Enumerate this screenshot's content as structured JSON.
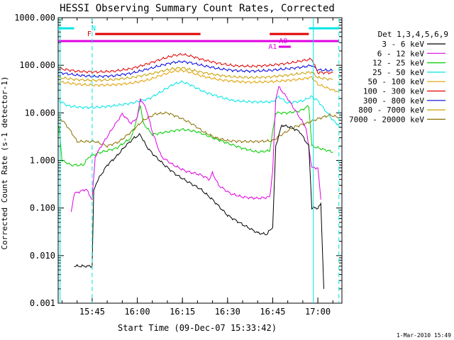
{
  "chart_data": {
    "type": "line",
    "title": "HESSI Observing Summary Count Rates, Corrected",
    "xlabel": "Start Time (09-Dec-07 15:33:42)",
    "ylabel": "Corrected Count Rate (s-1 detector-1)",
    "y_scale": "log",
    "ylim": [
      0.001,
      1000
    ],
    "xlim": [
      "15:33:42",
      "17:08:00"
    ],
    "y_ticks": [
      "0.001",
      "0.010",
      "0.100",
      "1.000",
      "10.000",
      "100.000",
      "1000.000"
    ],
    "x_ticks": [
      "15:45",
      "16:00",
      "16:15",
      "16:30",
      "16:45",
      "17:00"
    ],
    "legend_title": "Det 1,3,4,5,6,9",
    "legend_placement": "right",
    "footer_date": "1-Mar-2010 15:49",
    "flags": [
      {
        "label": "N",
        "color": "#00e5e5"
      },
      {
        "label": "F",
        "color": "#e00000"
      },
      {
        "label": "A0",
        "color": "#e000e0"
      },
      {
        "label": "A1",
        "color": "#e000e0"
      }
    ],
    "series": [
      {
        "name": "3 - 6 keV",
        "color": "#000000",
        "points": [
          [
            "15:39",
            0.006
          ],
          [
            "15:45",
            0.006
          ],
          [
            "15:45:30",
            0.25
          ],
          [
            "15:47",
            0.4
          ],
          [
            "15:50",
            0.8
          ],
          [
            "15:53",
            1.2
          ],
          [
            "15:56",
            2.0
          ],
          [
            "15:59",
            3.0
          ],
          [
            "16:01",
            3.5
          ],
          [
            "16:03",
            2.0
          ],
          [
            "16:05",
            1.4
          ],
          [
            "16:09",
            0.8
          ],
          [
            "16:13",
            0.5
          ],
          [
            "16:17",
            0.35
          ],
          [
            "16:21",
            0.25
          ],
          [
            "16:25",
            0.15
          ],
          [
            "16:30",
            0.07
          ],
          [
            "16:35",
            0.045
          ],
          [
            "16:40",
            0.03
          ],
          [
            "16:43",
            0.028
          ],
          [
            "16:45",
            0.04
          ],
          [
            "16:46",
            2.0
          ],
          [
            "16:48",
            5.5
          ],
          [
            "16:51",
            5.0
          ],
          [
            "16:54",
            4.0
          ],
          [
            "16:57",
            2.0
          ],
          [
            "16:58",
            0.1
          ],
          [
            "17:00",
            0.1
          ],
          [
            "17:01",
            0.12
          ],
          [
            "17:02",
            0.002
          ]
        ]
      },
      {
        "name": "6 - 12 keV",
        "color": "#e000e0",
        "points": [
          [
            "15:38",
            0.08
          ],
          [
            "15:39",
            0.2
          ],
          [
            "15:43",
            0.25
          ],
          [
            "15:45",
            0.15
          ],
          [
            "15:46",
            1.2
          ],
          [
            "15:48",
            2.0
          ],
          [
            "15:52",
            5.0
          ],
          [
            "15:55",
            9.5
          ],
          [
            "15:58",
            6.0
          ],
          [
            "16:00",
            8.0
          ],
          [
            "16:01",
            20.0
          ],
          [
            "16:03",
            12.0
          ],
          [
            "16:05",
            4.0
          ],
          [
            "16:08",
            1.2
          ],
          [
            "16:12",
            0.8
          ],
          [
            "16:16",
            0.6
          ],
          [
            "16:21",
            0.5
          ],
          [
            "16:24",
            0.4
          ],
          [
            "16:25",
            0.55
          ],
          [
            "16:27",
            0.3
          ],
          [
            "16:31",
            0.2
          ],
          [
            "16:35",
            0.17
          ],
          [
            "16:40",
            0.16
          ],
          [
            "16:44",
            0.17
          ],
          [
            "16:45",
            0.6
          ],
          [
            "16:46",
            20.0
          ],
          [
            "16:47",
            35.0
          ],
          [
            "16:50",
            20.0
          ],
          [
            "16:53",
            10.0
          ],
          [
            "16:56",
            5.0
          ],
          [
            "16:58",
            0.7
          ],
          [
            "17:00",
            0.7
          ],
          [
            "17:01",
            0.15
          ]
        ]
      },
      {
        "name": "12 - 25 keV",
        "color": "#00cc00",
        "points": [
          [
            "15:34",
            5.0
          ],
          [
            "15:35",
            1.0
          ],
          [
            "15:38",
            0.8
          ],
          [
            "15:41",
            0.8
          ],
          [
            "15:42",
            0.8
          ],
          [
            "15:44",
            1.2
          ],
          [
            "15:48",
            1.5
          ],
          [
            "15:53",
            1.8
          ],
          [
            "15:58",
            3.0
          ],
          [
            "16:00",
            8.0
          ],
          [
            "16:01",
            15.0
          ],
          [
            "16:02",
            6.0
          ],
          [
            "16:05",
            3.5
          ],
          [
            "16:10",
            4.0
          ],
          [
            "16:15",
            4.5
          ],
          [
            "16:20",
            4.0
          ],
          [
            "16:25",
            3.0
          ],
          [
            "16:30",
            2.3
          ],
          [
            "16:35",
            1.8
          ],
          [
            "16:40",
            1.5
          ],
          [
            "16:44",
            1.6
          ],
          [
            "16:46",
            10.0
          ],
          [
            "16:50",
            10.0
          ],
          [
            "16:54",
            11.0
          ],
          [
            "16:57",
            14.0
          ],
          [
            "16:58",
            2.0
          ],
          [
            "17:05",
            1.5
          ]
        ]
      },
      {
        "name": "25 - 50 keV",
        "color": "#00e5e5",
        "points": [
          [
            "15:34",
            18.0
          ],
          [
            "15:37",
            14.0
          ],
          [
            "15:42",
            13.0
          ],
          [
            "15:46",
            13.0
          ],
          [
            "15:52",
            14.0
          ],
          [
            "15:58",
            16.0
          ],
          [
            "16:04",
            20.0
          ],
          [
            "16:08",
            28.0
          ],
          [
            "16:12",
            40.0
          ],
          [
            "16:15",
            45.0
          ],
          [
            "16:18",
            38.0
          ],
          [
            "16:22",
            28.0
          ],
          [
            "16:27",
            22.0
          ],
          [
            "16:32",
            18.0
          ],
          [
            "16:38",
            17.0
          ],
          [
            "16:42",
            17.0
          ],
          [
            "16:45",
            17.0
          ],
          [
            "16:47",
            22.0
          ],
          [
            "16:50",
            16.0
          ],
          [
            "16:55",
            18.0
          ],
          [
            "16:58",
            22.0
          ],
          [
            "17:00",
            18.0
          ],
          [
            "17:05",
            7.0
          ],
          [
            "17:07",
            5.5
          ]
        ]
      },
      {
        "name": "50 - 100 keV",
        "color": "#e0a000",
        "points": [
          [
            "15:34",
            45.0
          ],
          [
            "15:40",
            40.0
          ],
          [
            "15:46",
            38.0
          ],
          [
            "15:52",
            39.0
          ],
          [
            "15:58",
            42.0
          ],
          [
            "16:04",
            50.0
          ],
          [
            "16:08",
            62.0
          ],
          [
            "16:12",
            75.0
          ],
          [
            "16:15",
            78.0
          ],
          [
            "16:18",
            70.0
          ],
          [
            "16:22",
            58.0
          ],
          [
            "16:27",
            50.0
          ],
          [
            "16:32",
            46.0
          ],
          [
            "16:38",
            44.0
          ],
          [
            "16:44",
            45.0
          ],
          [
            "16:50",
            48.0
          ],
          [
            "16:55",
            52.0
          ],
          [
            "16:58",
            56.0
          ],
          [
            "17:00",
            40.0
          ],
          [
            "17:05",
            30.0
          ],
          [
            "17:07",
            28.0
          ]
        ]
      },
      {
        "name": "100 - 300 keV",
        "color": "#e00000",
        "points": [
          [
            "15:34",
            85.0
          ],
          [
            "15:40",
            75.0
          ],
          [
            "15:46",
            72.0
          ],
          [
            "15:52",
            75.0
          ],
          [
            "15:58",
            85.0
          ],
          [
            "16:04",
            110.0
          ],
          [
            "16:08",
            135.0
          ],
          [
            "16:12",
            160.0
          ],
          [
            "16:15",
            170.0
          ],
          [
            "16:18",
            155.0
          ],
          [
            "16:22",
            130.0
          ],
          [
            "16:27",
            110.0
          ],
          [
            "16:32",
            98.0
          ],
          [
            "16:38",
            95.0
          ],
          [
            "16:44",
            100.0
          ],
          [
            "16:50",
            110.0
          ],
          [
            "16:55",
            125.0
          ],
          [
            "16:58",
            135.0
          ],
          [
            "17:00",
            70.0
          ],
          [
            "17:05",
            70.0
          ]
        ]
      },
      {
        "name": "300 - 800 keV",
        "color": "#0000e0",
        "points": [
          [
            "15:34",
            70.0
          ],
          [
            "15:40",
            62.0
          ],
          [
            "15:46",
            58.0
          ],
          [
            "15:52",
            60.0
          ],
          [
            "15:58",
            68.0
          ],
          [
            "16:04",
            85.0
          ],
          [
            "16:08",
            100.0
          ],
          [
            "16:12",
            115.0
          ],
          [
            "16:15",
            120.0
          ],
          [
            "16:18",
            112.0
          ],
          [
            "16:22",
            98.0
          ],
          [
            "16:27",
            85.0
          ],
          [
            "16:32",
            78.0
          ],
          [
            "16:38",
            75.0
          ],
          [
            "16:44",
            78.0
          ],
          [
            "16:50",
            85.0
          ],
          [
            "16:55",
            92.0
          ],
          [
            "16:58",
            100.0
          ],
          [
            "17:00",
            80.0
          ],
          [
            "17:05",
            78.0
          ]
        ]
      },
      {
        "name": "800 - 7000 keV",
        "color": "#c8a000",
        "points": [
          [
            "15:34",
            55.0
          ],
          [
            "15:40",
            50.0
          ],
          [
            "15:46",
            48.0
          ],
          [
            "15:52",
            50.0
          ],
          [
            "15:58",
            55.0
          ],
          [
            "16:04",
            65.0
          ],
          [
            "16:08",
            75.0
          ],
          [
            "16:12",
            85.0
          ],
          [
            "16:15",
            88.0
          ],
          [
            "16:18",
            80.0
          ],
          [
            "16:22",
            70.0
          ],
          [
            "16:27",
            62.0
          ],
          [
            "16:32",
            57.0
          ],
          [
            "16:38",
            55.0
          ],
          [
            "16:44",
            57.0
          ],
          [
            "16:50",
            62.0
          ],
          [
            "16:55",
            68.0
          ],
          [
            "16:58",
            72.0
          ],
          [
            "17:00",
            55.0
          ],
          [
            "17:05",
            50.0
          ]
        ]
      },
      {
        "name": "7000 - 20000 keV",
        "color": "#8b7000",
        "points": [
          [
            "15:34",
            8.0
          ],
          [
            "15:36",
            6.0
          ],
          [
            "15:38",
            4.0
          ],
          [
            "15:40",
            2.5
          ],
          [
            "15:42",
            2.5
          ],
          [
            "15:46",
            2.5
          ],
          [
            "15:50",
            2.0
          ],
          [
            "15:54",
            2.5
          ],
          [
            "15:58",
            4.0
          ],
          [
            "16:02",
            7.0
          ],
          [
            "16:06",
            9.5
          ],
          [
            "16:10",
            10.0
          ],
          [
            "16:14",
            8.0
          ],
          [
            "16:18",
            6.0
          ],
          [
            "16:22",
            4.0
          ],
          [
            "16:26",
            3.0
          ],
          [
            "16:30",
            2.6
          ],
          [
            "16:35",
            2.5
          ],
          [
            "16:40",
            2.5
          ],
          [
            "16:45",
            2.6
          ],
          [
            "16:48",
            3.5
          ],
          [
            "16:52",
            5.0
          ],
          [
            "16:56",
            6.0
          ],
          [
            "17:00",
            7.5
          ],
          [
            "17:04",
            9.0
          ],
          [
            "17:07",
            8.0
          ]
        ]
      }
    ]
  }
}
